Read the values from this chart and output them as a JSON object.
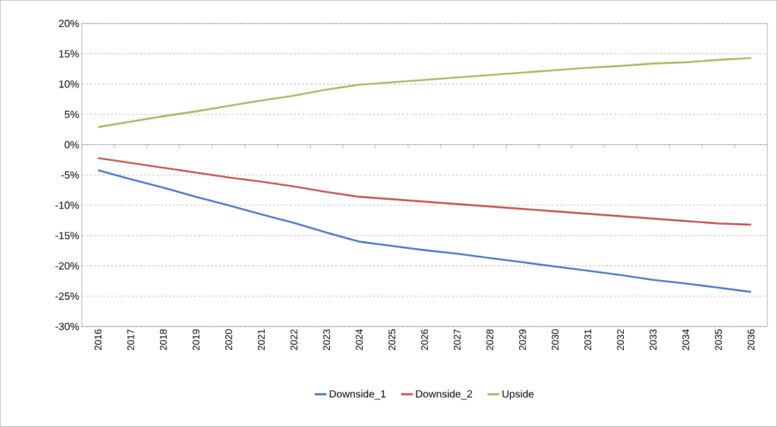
{
  "chart_data": {
    "type": "line",
    "categories": [
      "2016",
      "2017",
      "2018",
      "2019",
      "2020",
      "2021",
      "2022",
      "2023",
      "2024",
      "2025",
      "2026",
      "2027",
      "2028",
      "2029",
      "2030",
      "2031",
      "2032",
      "2033",
      "2034",
      "2035",
      "2036"
    ],
    "series": [
      {
        "name": "Downside_1",
        "color": "#4472c4",
        "values": [
          -4.2,
          -5.7,
          -7.1,
          -8.6,
          -10.0,
          -11.5,
          -12.9,
          -14.5,
          -16.0,
          -16.7,
          -17.4,
          -18.0,
          -18.7,
          -19.4,
          -20.1,
          -20.8,
          -21.5,
          -22.3,
          -22.9,
          -23.6,
          -24.3
        ]
      },
      {
        "name": "Downside_2",
        "color": "#c0504d",
        "values": [
          -2.2,
          -3.0,
          -3.8,
          -4.6,
          -5.4,
          -6.1,
          -6.9,
          -7.8,
          -8.6,
          -9.0,
          -9.4,
          -9.8,
          -10.2,
          -10.6,
          -11.0,
          -11.4,
          -11.8,
          -12.2,
          -12.6,
          -13.0,
          -13.2
        ]
      },
      {
        "name": "Upside",
        "color": "#9bbb59",
        "values": [
          2.9,
          3.8,
          4.7,
          5.5,
          6.4,
          7.3,
          8.1,
          9.1,
          9.9,
          10.3,
          10.7,
          11.1,
          11.5,
          11.9,
          12.3,
          12.7,
          13.0,
          13.4,
          13.6,
          14.0,
          14.3
        ]
      }
    ],
    "ylim": [
      -30,
      20
    ],
    "yticks": [
      {
        "value": -30,
        "label": "-30%"
      },
      {
        "value": -25,
        "label": "-25%"
      },
      {
        "value": -20,
        "label": "-20%"
      },
      {
        "value": -15,
        "label": "-15%"
      },
      {
        "value": -10,
        "label": "-10%"
      },
      {
        "value": -5,
        "label": "-5%"
      },
      {
        "value": 0,
        "label": "0%"
      },
      {
        "value": 5,
        "label": "5%"
      },
      {
        "value": 10,
        "label": "10%"
      },
      {
        "value": 15,
        "label": "15%"
      },
      {
        "value": 20,
        "label": "20%"
      }
    ],
    "grid": "y",
    "legend": "bottom",
    "marker": "none",
    "line_style": "solid"
  }
}
